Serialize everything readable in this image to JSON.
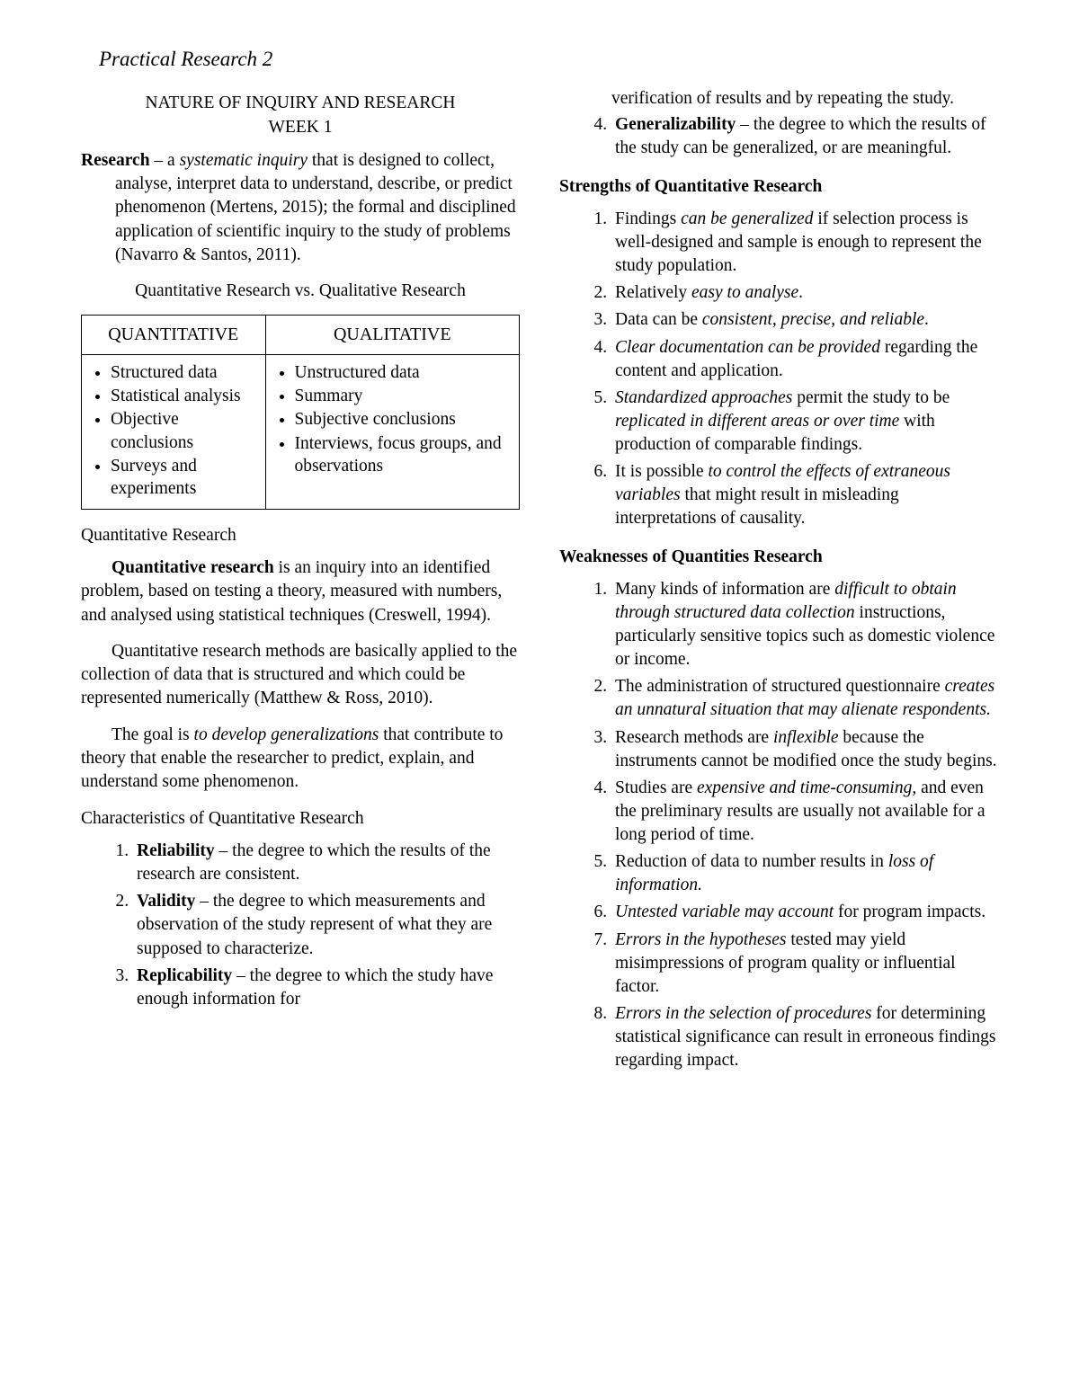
{
  "title": "Practical Research 2",
  "heading_line1": "NATURE OF INQUIRY AND RESEARCH",
  "heading_line2": "WEEK 1",
  "research_def": {
    "lead_bold": "Research",
    "dash": " – a ",
    "ital1": "systematic inquiry",
    "rest": " that is designed to collect, analyse, interpret data to understand, describe, or predict phenomenon (Mertens, 2015); the formal and disciplined application of scientific inquiry to the study of problems (Navarro & Santos, 2011)."
  },
  "compare_heading": "Quantitative Research vs. Qualitative Research",
  "table": {
    "head_left": "QUANTITATIVE",
    "head_right": "QUALITATIVE",
    "left": [
      "Structured data",
      "Statistical analysis",
      "Objective conclusions",
      "Surveys and experiments"
    ],
    "right": [
      "Unstructured data",
      "Summary",
      "Subjective conclusions",
      "Interviews, focus groups, and observations"
    ]
  },
  "qr_label": "Quantitative Research",
  "qr_p1": {
    "bold": "Quantitative research",
    "rest": " is an inquiry into an identified problem, based on testing a theory, measured with numbers, and analysed using statistical techniques (Creswell, 1994)."
  },
  "qr_p2": "Quantitative research methods are basically applied to the collection of data that is structured and which could be represented numerically (Matthew & Ross, 2010).",
  "qr_p3": {
    "pre": "The goal is ",
    "ital": "to develop generalizations",
    "post": " that contribute to theory that enable the researcher to predict, explain, and understand some phenomenon."
  },
  "char_heading": "Characteristics of Quantitative Research",
  "characteristics": [
    {
      "bold": "Reliability",
      "rest": " – the degree to which the results of the research are consistent."
    },
    {
      "bold": "Validity",
      "rest": " – the degree to which measurements and observation of the study represent of what they are supposed to characterize."
    },
    {
      "bold": "Replicability",
      "rest": " – the degree to which the study have enough information for verification of results and by repeating the study.",
      "split": true,
      "rest_a": " – the degree to which the study have enough information for",
      "rest_b": "verification of results and by repeating the study."
    },
    {
      "bold": "Generalizability",
      "rest": " – the degree to which the results of the study can be generalized, or are meaningful."
    }
  ],
  "strengths_heading": "Strengths of Quantitative Research",
  "strengths": [
    {
      "parts": [
        {
          "t": "Findings "
        },
        {
          "i": "can be generalized"
        },
        {
          "t": " if selection process is well-designed and sample is enough to represent the study population."
        }
      ]
    },
    {
      "parts": [
        {
          "t": "Relatively "
        },
        {
          "i": "easy to analyse"
        },
        {
          "t": "."
        }
      ]
    },
    {
      "parts": [
        {
          "t": "Data can be "
        },
        {
          "i": "consistent, precise, and reliable"
        },
        {
          "t": "."
        }
      ]
    },
    {
      "parts": [
        {
          "i": "Clear documentation can be provided"
        },
        {
          "t": " regarding the content and application."
        }
      ]
    },
    {
      "parts": [
        {
          "i": "Standardized approaches"
        },
        {
          "t": " permit the study to be "
        },
        {
          "i": "replicated in different areas or over time"
        },
        {
          "t": " with production of comparable findings."
        }
      ]
    },
    {
      "parts": [
        {
          "t": "It is possible "
        },
        {
          "i": "to control the effects of extraneous variables"
        },
        {
          "t": " that might result in misleading interpretations of causality."
        }
      ]
    }
  ],
  "weak_heading": "Weaknesses of Quantities Research",
  "weaknesses": [
    {
      "parts": [
        {
          "t": "Many kinds of information are "
        },
        {
          "i": "difficult to obtain through structured data collection"
        },
        {
          "t": " instructions, particularly sensitive topics such as domestic violence or income."
        }
      ]
    },
    {
      "parts": [
        {
          "t": "The administration of structured questionnaire "
        },
        {
          "i": "creates an unnatural situation that may alienate respondents."
        }
      ]
    },
    {
      "parts": [
        {
          "t": "Research methods are "
        },
        {
          "i": "inflexible"
        },
        {
          "t": " because the instruments cannot be modified once the study begins."
        }
      ]
    },
    {
      "parts": [
        {
          "t": "Studies are "
        },
        {
          "i": "expensive and time-consuming,"
        },
        {
          "t": " and even the preliminary results are usually not available for a long period of time."
        }
      ]
    },
    {
      "parts": [
        {
          "t": "Reduction of data to number results in "
        },
        {
          "i": "loss of information."
        }
      ]
    },
    {
      "parts": [
        {
          "i": "Untested variable may account"
        },
        {
          "t": " for program impacts."
        }
      ]
    },
    {
      "parts": [
        {
          "i": "Errors in the hypotheses"
        },
        {
          "t": " tested may yield misimpressions of program quality or influential factor."
        }
      ]
    },
    {
      "parts": [
        {
          "i": "Errors in the selection of procedures"
        },
        {
          "t": " for determining statistical significance can result in erroneous findings regarding impact."
        }
      ]
    }
  ]
}
